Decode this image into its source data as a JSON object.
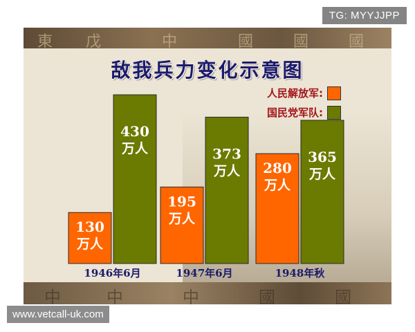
{
  "watermarks": {
    "top": "TG: MYYJJPP",
    "bottom": "www.vetcall-uk.com"
  },
  "chart_data": {
    "type": "bar",
    "title": "敌我兵力变化示意图",
    "categories": [
      "1946年6月",
      "1947年6月",
      "1948年秋"
    ],
    "unit": "万人",
    "series": [
      {
        "name": "人民解放军:",
        "color": "#ff6600",
        "values": [
          130,
          195,
          280
        ]
      },
      {
        "name": "国民党军队:",
        "color": "#6b7a00",
        "values": [
          430,
          373,
          365
        ]
      }
    ],
    "ylim": [
      0,
      430
    ],
    "grid": false,
    "legend_position": "top-right"
  },
  "colors": {
    "title": "#1c1a6b",
    "legend_text": "#a3151a",
    "category_label": "#1c1a6b",
    "bar_label": "#ffffff"
  }
}
